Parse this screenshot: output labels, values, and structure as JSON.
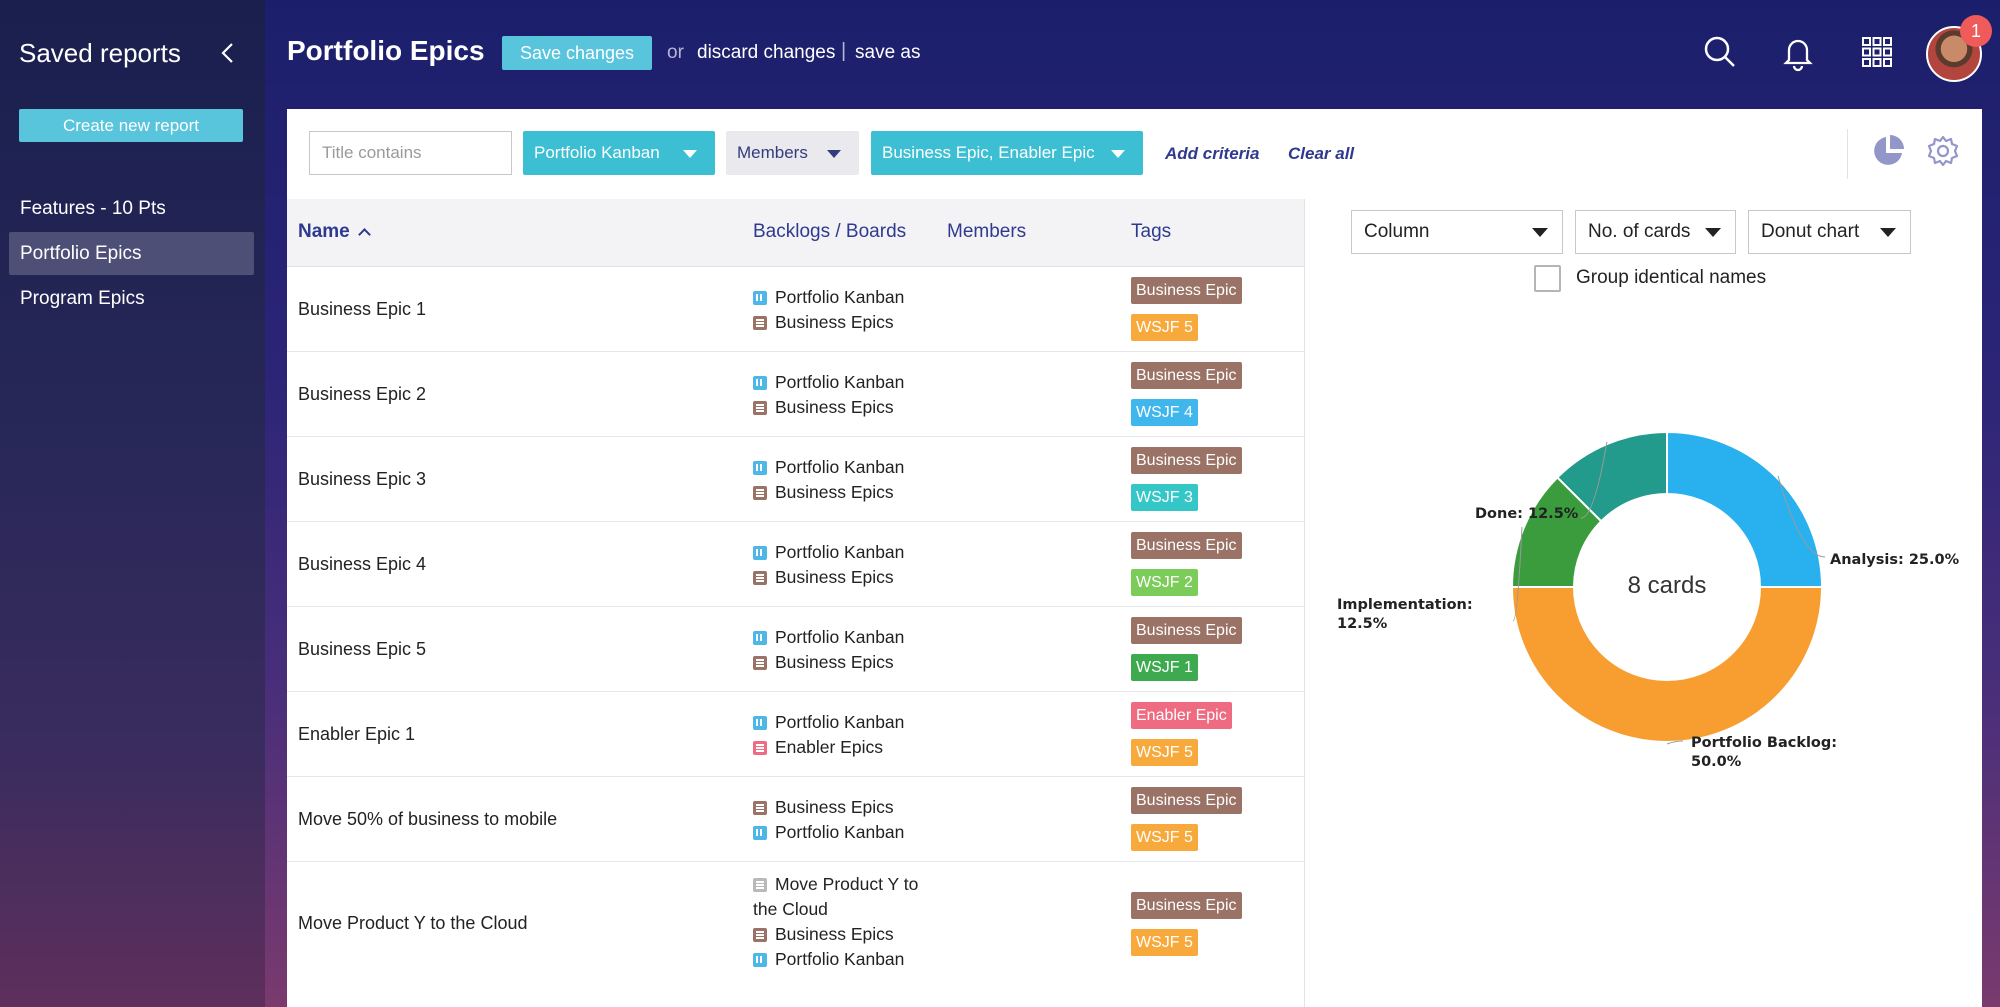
{
  "sidebar": {
    "title": "Saved reports",
    "create_label": "Create new report",
    "items": [
      {
        "label": "Features - 10 Pts"
      },
      {
        "label": "Portfolio Epics"
      },
      {
        "label": "Program Epics"
      }
    ]
  },
  "header": {
    "title": "Portfolio Epics",
    "save_label": "Save changes",
    "or_text": "or",
    "discard_label": "discard changes",
    "separator": "|",
    "save_as_label": "save as",
    "notification_count": "1"
  },
  "filters": {
    "title_placeholder": "Title contains",
    "board_filter": "Portfolio Kanban",
    "members_filter": "Members",
    "tags_filter": "Business Epic, Enabler Epic",
    "add_criteria": "Add criteria",
    "clear_all": "Clear all"
  },
  "table": {
    "columns": [
      "Name",
      "Backlogs / Boards",
      "Members",
      "Tags"
    ],
    "rows": [
      {
        "name": "Business Epic 1",
        "boards": [
          "Portfolio Kanban",
          "Business Epics"
        ],
        "tags": [
          "Business Epic",
          "WSJF 5"
        ]
      },
      {
        "name": "Business Epic 2",
        "boards": [
          "Portfolio Kanban",
          "Business Epics"
        ],
        "tags": [
          "Business Epic",
          "WSJF 4"
        ]
      },
      {
        "name": "Business Epic 3",
        "boards": [
          "Portfolio Kanban",
          "Business Epics"
        ],
        "tags": [
          "Business Epic",
          "WSJF 3"
        ]
      },
      {
        "name": "Business Epic 4",
        "boards": [
          "Portfolio Kanban",
          "Business Epics"
        ],
        "tags": [
          "Business Epic",
          "WSJF 2"
        ]
      },
      {
        "name": "Business Epic 5",
        "boards": [
          "Portfolio Kanban",
          "Business Epics"
        ],
        "tags": [
          "Business Epic",
          "WSJF 1"
        ]
      },
      {
        "name": "Enabler Epic 1",
        "boards": [
          "Portfolio Kanban",
          "Enabler Epics"
        ],
        "tags": [
          "Enabler Epic",
          "WSJF 5"
        ]
      },
      {
        "name": "Move 50% of business to mobile",
        "boards": [
          "Business Epics",
          "Portfolio Kanban"
        ],
        "tags": [
          "Business Epic",
          "WSJF 5"
        ]
      },
      {
        "name": "Move Product Y to the Cloud",
        "boards": [
          "Move Product Y to",
          "the Cloud",
          "Business Epics",
          "Portfolio Kanban"
        ],
        "tags": [
          "Business Epic",
          "WSJF 5"
        ]
      }
    ]
  },
  "chart_controls": {
    "group_by": "Column",
    "measure": "No. of cards",
    "chart_type": "Donut chart",
    "group_identical_label": "Group identical names"
  },
  "chart_data": {
    "type": "pie",
    "center_label": "8 cards",
    "slices": [
      {
        "label": "Analysis",
        "value": 25.0,
        "color": "#29b0ee"
      },
      {
        "label": "Portfolio Backlog",
        "value": 50.0,
        "color": "#f89d2f"
      },
      {
        "label": "Implementation",
        "value": 12.5,
        "color": "#3b9c3e"
      },
      {
        "label": "Done",
        "value": 12.5,
        "color": "#229a8c"
      }
    ],
    "slice_labels": [
      "Analysis: 25.0%",
      "Portfolio Backlog:",
      "50.0%",
      "Implementation:",
      "12.5%",
      "Done: 12.5%"
    ]
  },
  "colors": {
    "accent": "#58c5dd",
    "filter_active": "#3cbfd3",
    "link": "#2f3a8f",
    "tag_business_epic": "#9a7366",
    "tag_enabler_epic": "#ef6b82"
  }
}
